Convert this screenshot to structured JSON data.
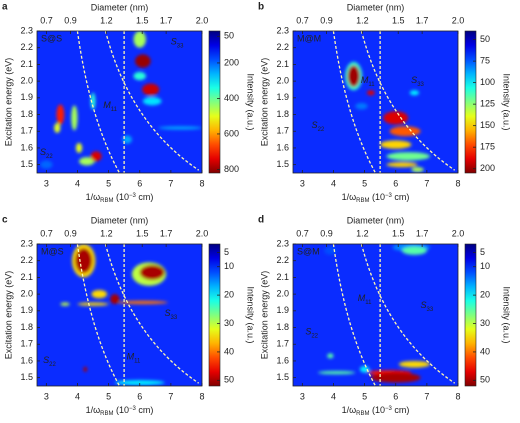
{
  "chart_data": [
    {
      "type": "heatmap",
      "panel": "a",
      "inset_label": "S@S",
      "ylabel": "Excitation energy (eV)",
      "x2label": "Diameter (nm)",
      "colorbar_label": "Intensity (a.u.)",
      "xlabel": {
        "main": "1/ω",
        "sub": "RBM",
        "mid": " (10",
        "sup": "−3",
        "end": " cm)"
      },
      "xlim": [
        2.7,
        8
      ],
      "xticks": [
        3,
        4,
        5,
        6,
        7,
        8
      ],
      "x2lim": [
        0.62,
        2
      ],
      "x2ticks": [
        0.7,
        0.9,
        1.2,
        1.5,
        1.7,
        {
          "value": 2,
          "label": "2.0"
        }
      ],
      "ylim": [
        1.45,
        2.3
      ],
      "yticks": [
        1.5,
        1.6,
        1.7,
        1.8,
        1.9,
        {
          "value": 2,
          "label": "2.0"
        },
        2.1,
        2.2,
        2.3
      ],
      "clim": [
        20,
        820
      ],
      "cticks": [
        50,
        200,
        400,
        600,
        800
      ],
      "colorbar_reversed": true,
      "background_color": "#0a2cff",
      "spots": [
        {
          "x": 7.3,
          "y": 1.72,
          "w": 1.4,
          "h": 0.02,
          "z": 250
        },
        {
          "x": 5.6,
          "y": 1.65,
          "w": 0.3,
          "h": 0.05,
          "z": 250
        },
        {
          "x": 3.0,
          "y": 1.5,
          "w": 0.4,
          "h": 0.05,
          "z": 200
        },
        {
          "x": 6.0,
          "y": 2.25,
          "w": 0.4,
          "h": 0.1,
          "z": 450
        },
        {
          "x": 6.0,
          "y": 2.03,
          "w": 0.4,
          "h": 0.05,
          "z": 350
        },
        {
          "x": 6.4,
          "y": 1.88,
          "w": 0.6,
          "h": 0.05,
          "z": 300
        },
        {
          "x": 4.5,
          "y": 1.88,
          "w": 0.15,
          "h": 0.1,
          "z": 350
        },
        {
          "x": 3.9,
          "y": 1.78,
          "w": 0.2,
          "h": 0.15,
          "z": 450
        },
        {
          "x": 4.3,
          "y": 1.52,
          "w": 0.5,
          "h": 0.05,
          "z": 450
        },
        {
          "x": 4.05,
          "y": 1.6,
          "w": 0.2,
          "h": 0.06,
          "z": 500
        },
        {
          "x": 3.35,
          "y": 1.72,
          "w": 0.2,
          "h": 0.06,
          "z": 500
        },
        {
          "x": 3.45,
          "y": 1.8,
          "w": 0.25,
          "h": 0.12,
          "z": 700
        },
        {
          "x": 4.6,
          "y": 1.55,
          "w": 0.35,
          "h": 0.06,
          "z": 750
        },
        {
          "x": 6.35,
          "y": 1.95,
          "w": 0.55,
          "h": 0.07,
          "z": 760
        },
        {
          "x": 6.1,
          "y": 2.12,
          "w": 0.5,
          "h": 0.08,
          "z": 800
        }
      ],
      "annotations": [
        {
          "text": "S",
          "sub": "33",
          "x": 7.2,
          "y": 2.23
        },
        {
          "text": "M",
          "sub": "11",
          "x": 5.05,
          "y": 1.85
        },
        {
          "text": "S",
          "sub": "22",
          "x": 3.0,
          "y": 1.57
        }
      ]
    },
    {
      "type": "heatmap",
      "panel": "b",
      "inset_label": "M@M",
      "ylabel": "Excitation energy (eV)",
      "x2label": "Diameter (nm)",
      "colorbar_label": "Intensity (a.u.)",
      "xlabel": {
        "main": "1/ω",
        "sub": "RBM",
        "mid": " (10",
        "sup": "−3",
        "end": " cm)"
      },
      "xlim": [
        2.7,
        8
      ],
      "xticks": [
        3,
        4,
        5,
        6,
        7,
        8
      ],
      "x2lim": [
        0.62,
        2
      ],
      "x2ticks": [
        0.7,
        0.9,
        1.2,
        1.5,
        1.7,
        {
          "value": 2,
          "label": "2.0"
        }
      ],
      "ylim": [
        1.45,
        2.3
      ],
      "yticks": [
        1.5,
        1.6,
        1.7,
        1.8,
        1.9,
        {
          "value": 2,
          "label": "2.0"
        },
        2.1,
        2.2,
        2.3
      ],
      "clim": [
        40,
        205
      ],
      "cticks": [
        50,
        75,
        100,
        125,
        150,
        175,
        200
      ],
      "colorbar_reversed": true,
      "background_color": "#0a2cff",
      "spots": [
        {
          "x": 4.65,
          "y": 2.03,
          "w": 0.55,
          "h": 0.17,
          "z": 110
        },
        {
          "x": 4.9,
          "y": 1.85,
          "w": 0.4,
          "h": 0.04,
          "z": 80
        },
        {
          "x": 6.6,
          "y": 1.93,
          "w": 0.3,
          "h": 0.03,
          "z": 100
        },
        {
          "x": 6.4,
          "y": 1.55,
          "w": 1.4,
          "h": 0.05,
          "z": 120
        },
        {
          "x": 6.7,
          "y": 1.47,
          "w": 0.4,
          "h": 0.03,
          "z": 130
        },
        {
          "x": 6.0,
          "y": 1.62,
          "w": 1.0,
          "h": 0.05,
          "z": 150
        },
        {
          "x": 6.2,
          "y": 1.5,
          "w": 1.0,
          "h": 0.03,
          "z": 150
        },
        {
          "x": 6.3,
          "y": 1.7,
          "w": 1.0,
          "h": 0.06,
          "z": 170
        },
        {
          "x": 6.0,
          "y": 1.78,
          "w": 0.8,
          "h": 0.08,
          "z": 190
        },
        {
          "x": 5.2,
          "y": 1.93,
          "w": 0.25,
          "h": 0.03,
          "z": 190
        },
        {
          "x": 4.65,
          "y": 2.03,
          "w": 0.4,
          "h": 0.13,
          "z": 200
        }
      ],
      "annotations": [
        {
          "text": "M",
          "sub": "11",
          "x": 5.1,
          "y": 2.0
        },
        {
          "text": "S",
          "sub": "33",
          "x": 6.7,
          "y": 2.0
        },
        {
          "text": "S",
          "sub": "22",
          "x": 3.5,
          "y": 1.73
        }
      ]
    },
    {
      "type": "heatmap",
      "panel": "c",
      "inset_label": "M@S",
      "ylabel": "Excitation energy (eV)",
      "x2label": "Diameter (nm)",
      "colorbar_label": "Intensity (a.u.)",
      "xlabel": {
        "main": "1/ω",
        "sub": "RBM",
        "mid": " (10",
        "sup": "−3",
        "end": " cm)"
      },
      "xlim": [
        2.7,
        8
      ],
      "xticks": [
        3,
        4,
        5,
        6,
        7,
        8
      ],
      "x2lim": [
        0.62,
        2
      ],
      "x2ticks": [
        0.7,
        0.9,
        1.2,
        1.5,
        1.7,
        {
          "value": 2,
          "label": "2.0"
        }
      ],
      "ylim": [
        1.45,
        2.3
      ],
      "yticks": [
        1.5,
        1.6,
        1.7,
        1.8,
        1.9,
        {
          "value": 2,
          "label": "2.0"
        },
        2.1,
        2.2,
        2.3
      ],
      "clim": [
        2,
        52
      ],
      "cticks": [
        5,
        10,
        20,
        30,
        40,
        50
      ],
      "colorbar_reversed": true,
      "background_color": "#0a2cff",
      "spots": [
        {
          "x": 6.0,
          "y": 1.47,
          "w": 1.6,
          "h": 0.03,
          "z": 20
        },
        {
          "x": 3.6,
          "y": 1.94,
          "w": 0.3,
          "h": 0.02,
          "z": 30
        },
        {
          "x": 6.3,
          "y": 2.12,
          "w": 1.1,
          "h": 0.14,
          "z": 30
        },
        {
          "x": 4.2,
          "y": 2.2,
          "w": 0.75,
          "h": 0.2,
          "z": 35
        },
        {
          "x": 4.7,
          "y": 2.0,
          "w": 0.5,
          "h": 0.05,
          "z": 35
        },
        {
          "x": 4.5,
          "y": 1.94,
          "w": 1.0,
          "h": 0.02,
          "z": 35
        },
        {
          "x": 6.1,
          "y": 1.95,
          "w": 1.6,
          "h": 0.02,
          "z": 40
        },
        {
          "x": 4.2,
          "y": 2.2,
          "w": 0.55,
          "h": 0.15,
          "z": 50
        },
        {
          "x": 6.4,
          "y": 2.13,
          "w": 0.8,
          "h": 0.09,
          "z": 50
        },
        {
          "x": 5.2,
          "y": 1.97,
          "w": 0.3,
          "h": 0.06,
          "z": 50
        },
        {
          "x": 4.25,
          "y": 1.55,
          "w": 0.12,
          "h": 0.03,
          "z": 50
        }
      ],
      "annotations": [
        {
          "text": "S",
          "sub": "33",
          "x": 7.0,
          "y": 1.88
        },
        {
          "text": "M",
          "sub": "11",
          "x": 5.8,
          "y": 1.62
        },
        {
          "text": "S",
          "sub": "22",
          "x": 3.1,
          "y": 1.6
        }
      ]
    },
    {
      "type": "heatmap",
      "panel": "d",
      "inset_label": "S@M",
      "ylabel": "Excitation energy (eV)",
      "x2label": "Diameter (nm)",
      "colorbar_label": "Intensity (a.u.)",
      "xlabel": {
        "main": "1/ω",
        "sub": "RBM",
        "mid": " (10",
        "sup": "−3",
        "end": " cm)"
      },
      "xlim": [
        2.7,
        8
      ],
      "xticks": [
        3,
        4,
        5,
        6,
        7,
        8
      ],
      "x2lim": [
        0.62,
        2
      ],
      "x2ticks": [
        0.7,
        0.9,
        1.2,
        1.5,
        1.7,
        {
          "value": 2,
          "label": "2.0"
        }
      ],
      "ylim": [
        1.45,
        2.3
      ],
      "yticks": [
        1.5,
        1.6,
        1.7,
        1.8,
        1.9,
        {
          "value": 2,
          "label": "2.0"
        },
        2.1,
        2.2,
        2.3
      ],
      "clim": [
        2,
        52
      ],
      "cticks": [
        5,
        10,
        20,
        30,
        40,
        50
      ],
      "colorbar_reversed": true,
      "background_color": "#0a2cff",
      "spots": [
        {
          "x": 3.9,
          "y": 2.26,
          "w": 0.4,
          "h": 0.05,
          "z": 12
        },
        {
          "x": 6.5,
          "y": 2.28,
          "w": 1.2,
          "h": 0.05,
          "z": 15
        },
        {
          "x": 5.0,
          "y": 1.55,
          "w": 0.3,
          "h": 0.04,
          "z": 20
        },
        {
          "x": 6.6,
          "y": 2.26,
          "w": 0.8,
          "h": 0.05,
          "z": 25
        },
        {
          "x": 4.1,
          "y": 1.53,
          "w": 1.2,
          "h": 0.02,
          "z": 25
        },
        {
          "x": 3.9,
          "y": 1.63,
          "w": 0.2,
          "h": 0.03,
          "z": 25
        },
        {
          "x": 6.6,
          "y": 1.58,
          "w": 1.0,
          "h": 0.04,
          "z": 35
        },
        {
          "x": 5.8,
          "y": 1.53,
          "w": 1.4,
          "h": 0.03,
          "z": 45
        },
        {
          "x": 6.0,
          "y": 1.5,
          "w": 1.6,
          "h": 0.06,
          "z": 50
        }
      ],
      "annotations": [
        {
          "text": "M",
          "sub": "11",
          "x": 5.0,
          "y": 1.97
        },
        {
          "text": "S",
          "sub": "33",
          "x": 7.0,
          "y": 1.93
        },
        {
          "text": "S",
          "sub": "22",
          "x": 3.3,
          "y": 1.77
        }
      ]
    }
  ]
}
